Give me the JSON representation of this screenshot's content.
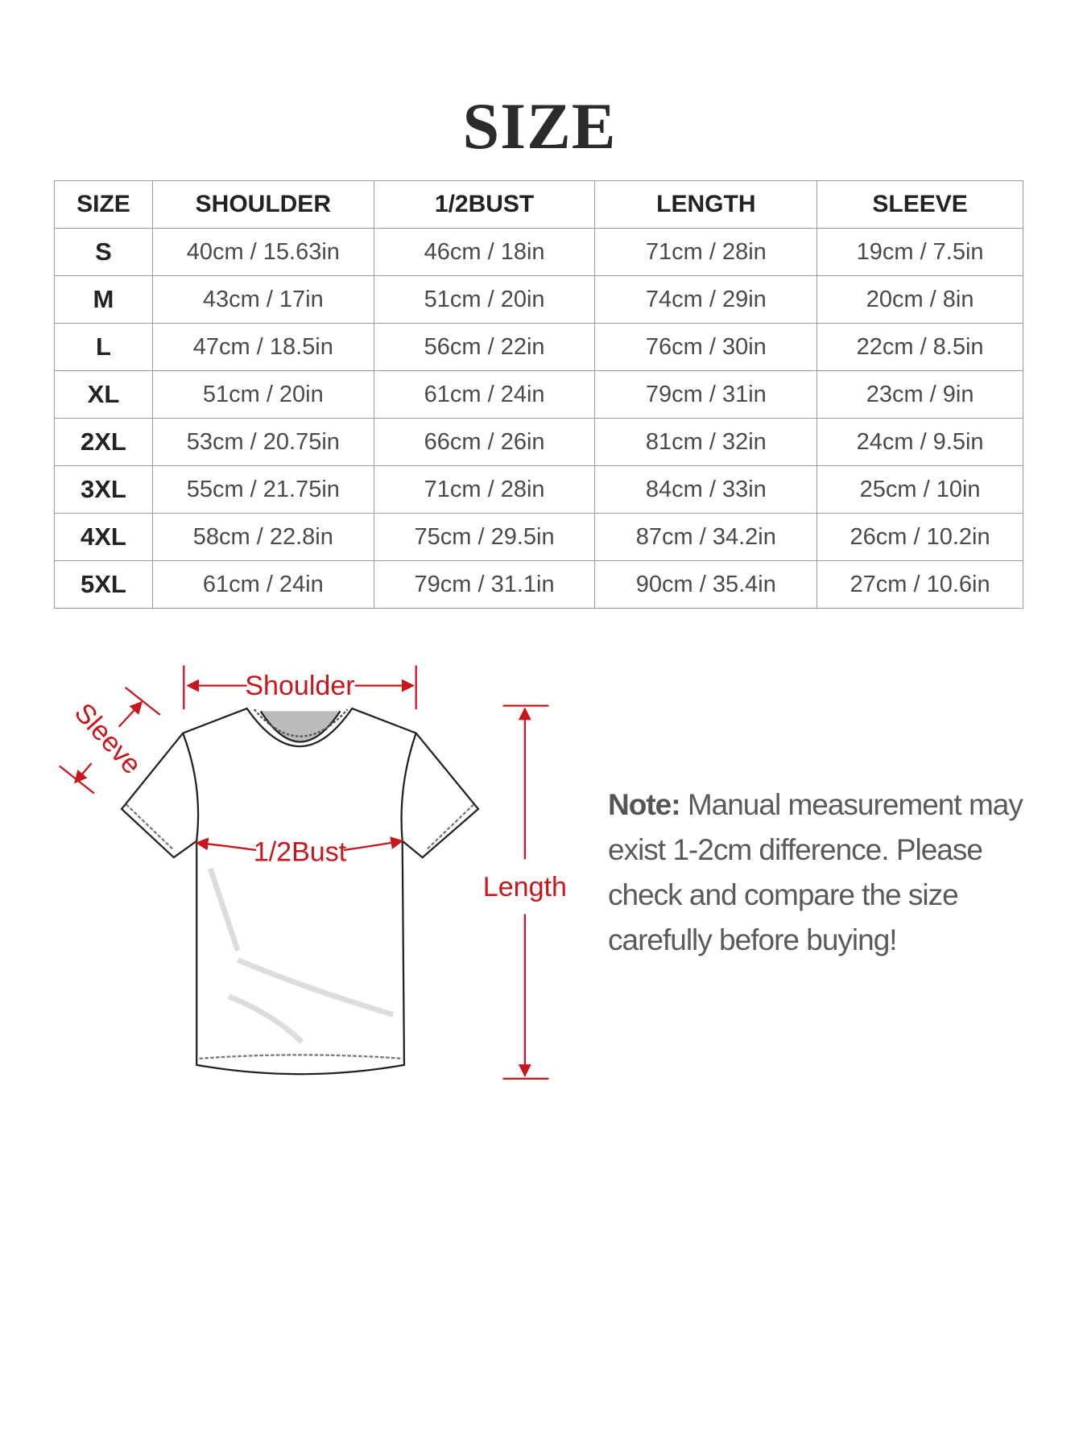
{
  "title": "SIZE",
  "table": {
    "headers": [
      "SIZE",
      "SHOULDER",
      "1/2BUST",
      "LENGTH",
      "SLEEVE"
    ],
    "rows": [
      [
        "S",
        "40cm / 15.63in",
        "46cm / 18in",
        "71cm / 28in",
        "19cm / 7.5in"
      ],
      [
        "M",
        "43cm / 17in",
        "51cm / 20in",
        "74cm / 29in",
        "20cm / 8in"
      ],
      [
        "L",
        "47cm / 18.5in",
        "56cm / 22in",
        "76cm / 30in",
        "22cm / 8.5in"
      ],
      [
        "XL",
        "51cm / 20in",
        "61cm / 24in",
        "79cm / 31in",
        "23cm / 9in"
      ],
      [
        "2XL",
        "53cm / 20.75in",
        "66cm / 26in",
        "81cm / 32in",
        "24cm / 9.5in"
      ],
      [
        "3XL",
        "55cm / 21.75in",
        "71cm / 28in",
        "84cm / 33in",
        "25cm / 10in"
      ],
      [
        "4XL",
        "58cm / 22.8in",
        "75cm / 29.5in",
        "87cm / 34.2in",
        "26cm / 10.2in"
      ],
      [
        "5XL",
        "61cm / 24in",
        "79cm / 31.1in",
        "90cm / 35.4in",
        "27cm / 10.6in"
      ]
    ]
  },
  "diagram": {
    "labels": {
      "shoulder": "Shoulder",
      "sleeve": "Sleeve",
      "bust": "1/2Bust",
      "length": "Length"
    },
    "accent_color": "#c8161d"
  },
  "note": {
    "label": "Note:",
    "text": "Manual measurement may exist 1-2cm difference. Please check and compare the size carefully before buying!"
  }
}
